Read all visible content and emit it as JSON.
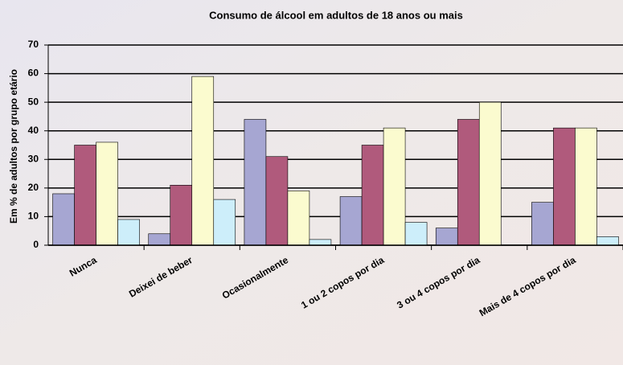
{
  "chart_data": {
    "type": "bar",
    "title": "Consumo de álcool em adultos de 18 anos ou mais",
    "y_label": "Em % de adultos por grupo etário",
    "categories": [
      "Nunca",
      "Deixei de beber",
      "Ocasionalmente",
      "1 ou 2 copos por dia",
      "3 ou 4 copos por dia",
      "Mais de 4 copos por dia"
    ],
    "series": [
      {
        "color": "#a6a6d2",
        "values": [
          18,
          4,
          44,
          17,
          6,
          15
        ]
      },
      {
        "color": "#b05a7c",
        "values": [
          35,
          21,
          31,
          35,
          44,
          41
        ]
      },
      {
        "color": "#fbfbcf",
        "values": [
          36,
          59,
          19,
          41,
          50,
          41
        ]
      },
      {
        "color": "#cdeefa",
        "values": [
          9,
          16,
          2,
          8,
          0,
          3
        ]
      }
    ],
    "ylim": [
      0,
      70
    ],
    "yticks": [
      0,
      10,
      20,
      30,
      40,
      50,
      60,
      70
    ],
    "grid": true
  }
}
